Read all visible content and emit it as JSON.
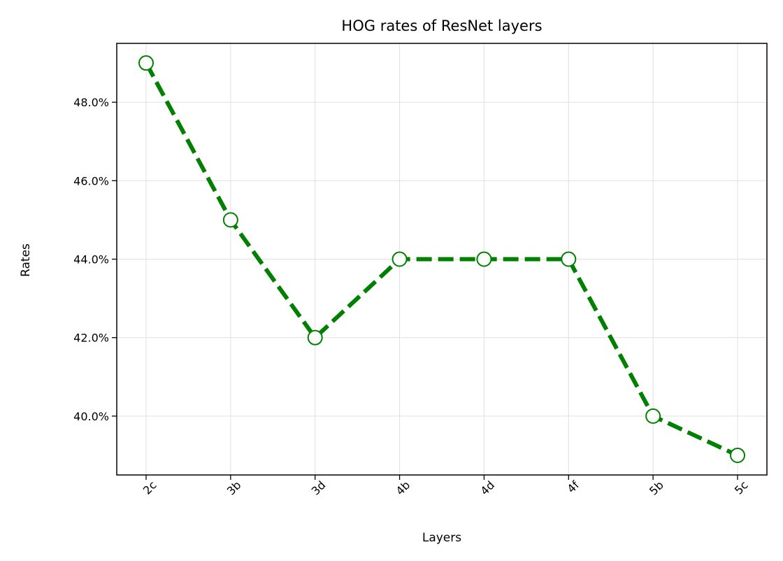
{
  "chart_data": {
    "type": "line",
    "title": "HOG rates of ResNet layers",
    "xlabel": "Layers",
    "ylabel": "Rates",
    "categories": [
      "2c",
      "3b",
      "3d",
      "4b",
      "4d",
      "4f",
      "5b",
      "5c"
    ],
    "series": [
      {
        "values": [
          49.0,
          45.0,
          42.0,
          44.0,
          44.0,
          44.0,
          40.0,
          39.0
        ]
      }
    ],
    "ylim": [
      38.5,
      49.5
    ],
    "yticks": [
      40.0,
      42.0,
      44.0,
      46.0,
      48.0
    ],
    "ytick_labels": [
      "40.0%",
      "42.0%",
      "44.0%",
      "46.0%",
      "48.0%"
    ],
    "y_unit": "percent",
    "line_color": "#008000",
    "line_style": "dashed",
    "marker": "open circle",
    "marker_face_color": "#ffffff",
    "grid": true,
    "grid_color": "#e0e0e0",
    "x_tick_rotation": "45 degrees"
  }
}
